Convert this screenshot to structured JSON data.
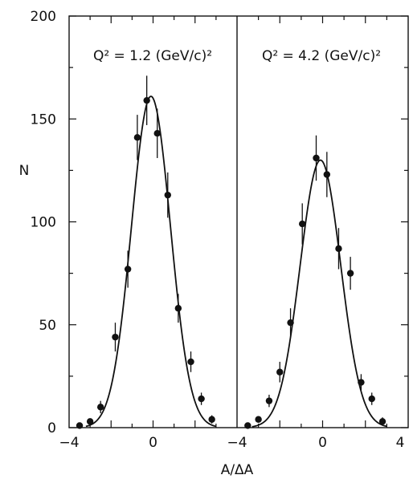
{
  "chart_data": {
    "type": "scatter",
    "ylabel": "N",
    "xlabel": "A/ΔA",
    "ylim": [
      0,
      200
    ],
    "yticks": [
      0,
      50,
      100,
      150,
      200
    ],
    "xlim": [
      -4,
      4
    ],
    "xtick_labels": [
      "−4",
      "0",
      "−4",
      "0",
      "4"
    ],
    "grid": false,
    "panels": [
      {
        "label": "Q² = 1.2 (GeV/c)²",
        "points": [
          {
            "x": -3.5,
            "y": 1,
            "err": 1
          },
          {
            "x": -3.0,
            "y": 3,
            "err": 1.5
          },
          {
            "x": -2.5,
            "y": 10,
            "err": 3
          },
          {
            "x": -1.8,
            "y": 44,
            "err": 7
          },
          {
            "x": -1.2,
            "y": 77,
            "err": 9
          },
          {
            "x": -0.75,
            "y": 141,
            "err": 11
          },
          {
            "x": -0.3,
            "y": 159,
            "err": 12
          },
          {
            "x": 0.2,
            "y": 143,
            "err": 12
          },
          {
            "x": 0.7,
            "y": 113,
            "err": 11
          },
          {
            "x": 1.2,
            "y": 58,
            "err": 7
          },
          {
            "x": 1.8,
            "y": 32,
            "err": 5
          },
          {
            "x": 2.3,
            "y": 14,
            "err": 3
          },
          {
            "x": 2.8,
            "y": 4,
            "err": 2
          }
        ],
        "fit": {
          "amplitude": 161,
          "mean": -0.1,
          "sigma": 0.93,
          "xrange": [
            -3.2,
            3.0
          ]
        }
      },
      {
        "label": "Q² = 4.2 (GeV/c)²",
        "points": [
          {
            "x": -3.5,
            "y": 1,
            "err": 1
          },
          {
            "x": -3.0,
            "y": 4,
            "err": 1.5
          },
          {
            "x": -2.5,
            "y": 13,
            "err": 3
          },
          {
            "x": -2.0,
            "y": 27,
            "err": 5
          },
          {
            "x": -1.5,
            "y": 51,
            "err": 7
          },
          {
            "x": -0.95,
            "y": 99,
            "err": 10
          },
          {
            "x": -0.3,
            "y": 131,
            "err": 11
          },
          {
            "x": 0.2,
            "y": 123,
            "err": 11
          },
          {
            "x": 0.75,
            "y": 87,
            "err": 10
          },
          {
            "x": 1.3,
            "y": 75,
            "err": 8
          },
          {
            "x": 1.8,
            "y": 22,
            "err": 4
          },
          {
            "x": 2.3,
            "y": 14,
            "err": 3
          },
          {
            "x": 2.8,
            "y": 3,
            "err": 2
          }
        ],
        "fit": {
          "amplitude": 130,
          "mean": -0.1,
          "sigma": 0.95,
          "xrange": [
            -3.3,
            3.0
          ]
        }
      }
    ]
  }
}
